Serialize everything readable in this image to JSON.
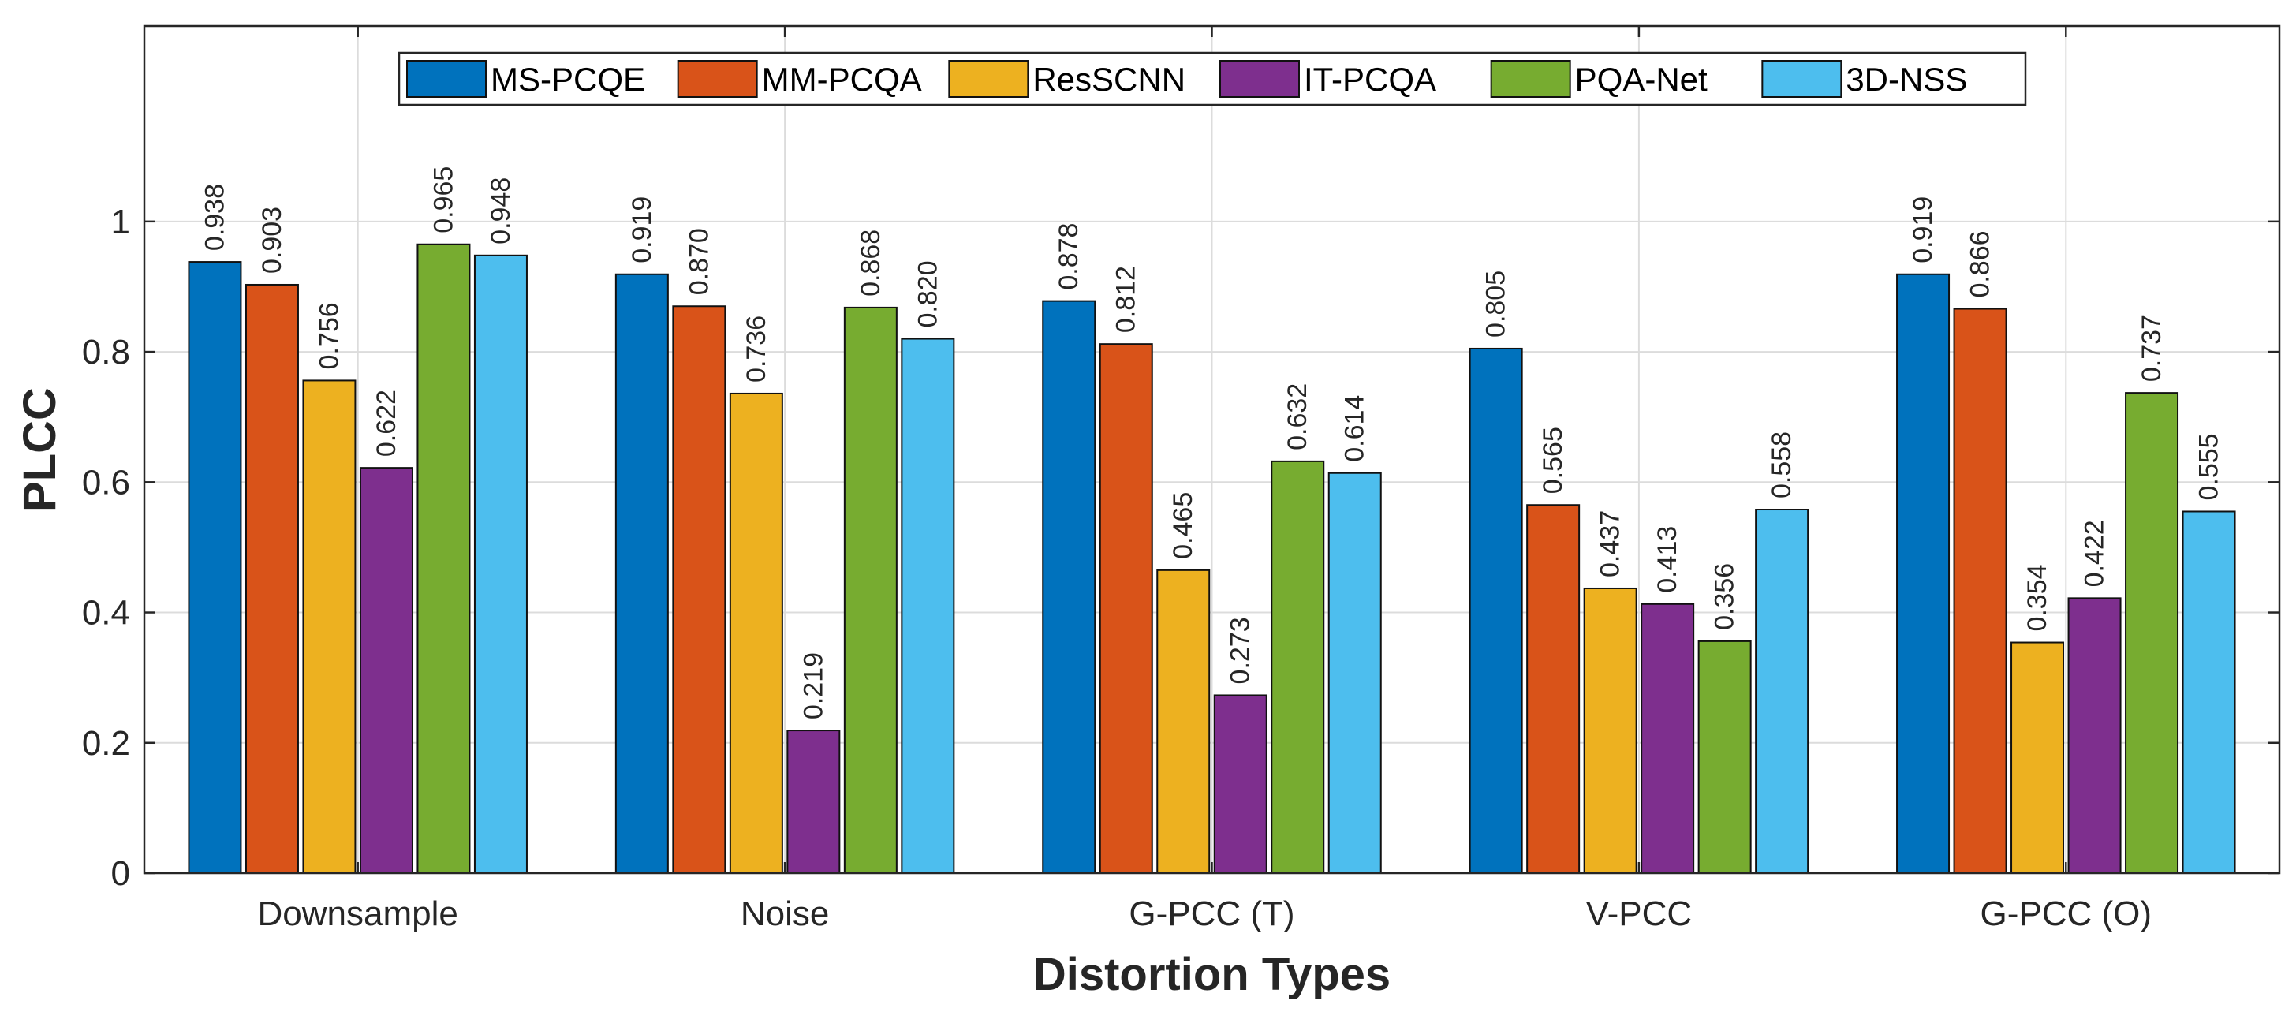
{
  "chart_data": {
    "type": "bar",
    "title": "",
    "xlabel": "Distortion Types",
    "ylabel": "PLCC",
    "ylim": [
      0,
      1.3
    ],
    "yticks": [
      0,
      0.2,
      0.4,
      0.6,
      0.8,
      1
    ],
    "ytick_labels": [
      "0",
      "0.2",
      "0.4",
      "0.6",
      "0.8",
      "1"
    ],
    "grid": true,
    "legend_position": "top-center",
    "categories": [
      "Downsample",
      "Noise",
      "G-PCC (T)",
      "V-PCC",
      "G-PCC (O)"
    ],
    "series": [
      {
        "name": "MS-PCQE",
        "color": "#0072BD",
        "values": [
          0.938,
          0.919,
          0.878,
          0.805,
          0.919
        ],
        "labels": [
          "0.938",
          "0.919",
          "0.878",
          "0.805",
          "0.919"
        ]
      },
      {
        "name": "MM-PCQA",
        "color": "#D95319",
        "values": [
          0.903,
          0.87,
          0.812,
          0.565,
          0.866
        ],
        "labels": [
          "0.903",
          "0.870",
          "0.812",
          "0.565",
          "0.866"
        ]
      },
      {
        "name": "ResSCNN",
        "color": "#EDB120",
        "values": [
          0.756,
          0.736,
          0.465,
          0.437,
          0.354
        ],
        "labels": [
          "0.756",
          "0.736",
          "0.465",
          "0.437",
          "0.354"
        ]
      },
      {
        "name": "IT-PCQA",
        "color": "#7E2F8E",
        "values": [
          0.622,
          0.219,
          0.273,
          0.413,
          0.422
        ],
        "labels": [
          "0.622",
          "0.219",
          "0.273",
          "0.413",
          "0.422"
        ]
      },
      {
        "name": "PQA-Net",
        "color": "#77AC30",
        "values": [
          0.965,
          0.868,
          0.632,
          0.356,
          0.737
        ],
        "labels": [
          "0.965",
          "0.868",
          "0.632",
          "0.356",
          "0.737"
        ]
      },
      {
        "name": "3D-NSS",
        "color": "#4DBEEE",
        "values": [
          0.948,
          0.82,
          0.614,
          0.558,
          0.555
        ],
        "labels": [
          "0.948",
          "0.820",
          "0.614",
          "0.558",
          "0.555"
        ]
      }
    ]
  }
}
